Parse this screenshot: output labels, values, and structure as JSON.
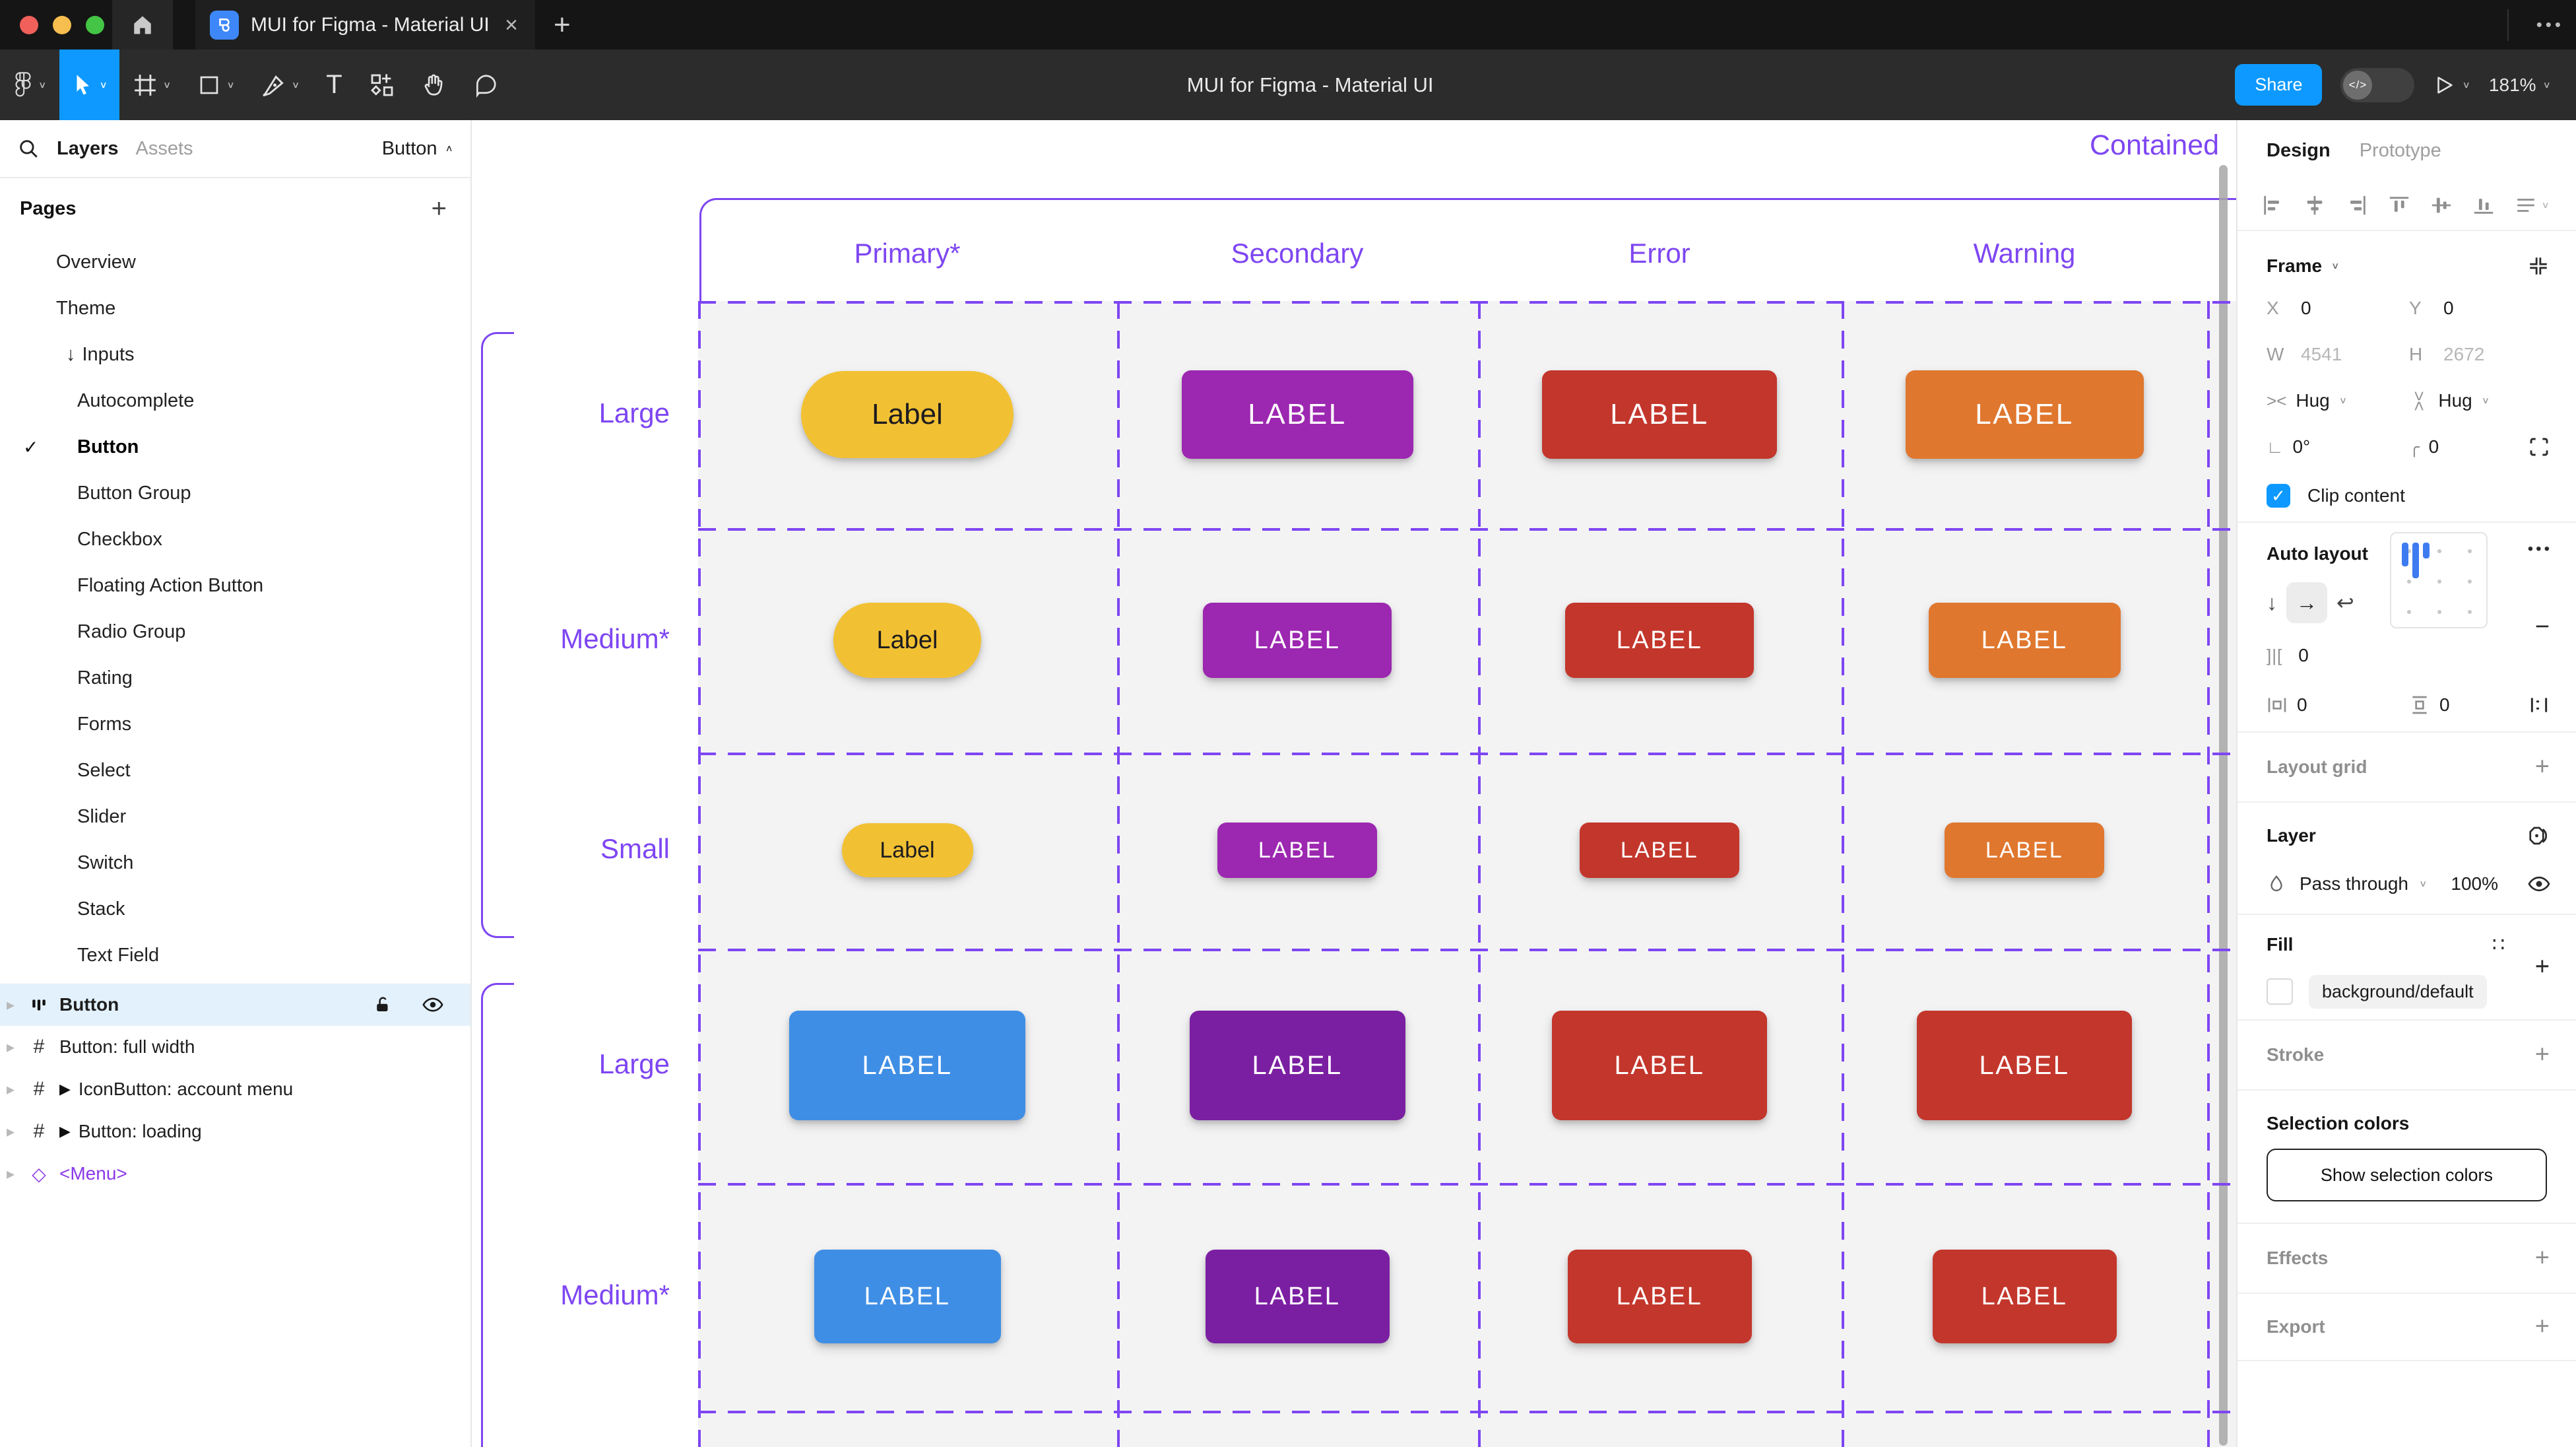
{
  "colors": {
    "accent_blue": "#0D99FF",
    "canvas_purple": "#7E46F2",
    "selected_row_bg": "#E3F1FC",
    "toolbar_bg": "#2C2C2C",
    "canvas_frame_fill": "#F3F3F4"
  },
  "icons": {
    "close": "×",
    "plus": "+",
    "minus": "−",
    "dots": "•••",
    "check": "✓",
    "chevron_down": "∨",
    "chevron_up": "∧",
    "arrow_down": "↓",
    "arrow_right": "→",
    "wrap": "↩",
    "gap": "]|[",
    "angle": "∟",
    "corner_radius": "╭",
    "proportion": "∷",
    "play_marker": "▶",
    "diamond": "◇",
    "expander": "▸",
    "hash": "#",
    "hug": "><",
    "dev_toggle": "</>"
  },
  "window": {
    "tab_title": "MUI for Figma - Material UI"
  },
  "toolbar": {
    "doc_title": "MUI for Figma - Material UI",
    "share_label": "Share",
    "zoom_level": "181%"
  },
  "sidebar": {
    "tabs": [
      {
        "label": "Layers",
        "active": true
      },
      {
        "label": "Assets",
        "active": false
      }
    ],
    "filter_label": "Button",
    "pages_title": "Pages",
    "pages": [
      {
        "label": "Overview",
        "indent": 0
      },
      {
        "label": "Theme",
        "indent": 0
      },
      {
        "label": "Inputs",
        "indent": 0,
        "icon": "arrow-down"
      },
      {
        "label": "Autocomplete",
        "indent": 1
      },
      {
        "label": "Button",
        "indent": 1,
        "checked": true,
        "active": true
      },
      {
        "label": "Button Group",
        "indent": 1
      },
      {
        "label": "Checkbox",
        "indent": 1
      },
      {
        "label": "Floating Action Button",
        "indent": 1
      },
      {
        "label": "Radio Group",
        "indent": 1
      },
      {
        "label": "Rating",
        "indent": 1
      },
      {
        "label": "Forms",
        "indent": 1
      },
      {
        "label": "Select",
        "indent": 1
      },
      {
        "label": "Slider",
        "indent": 1
      },
      {
        "label": "Switch",
        "indent": 1
      },
      {
        "label": "Stack",
        "indent": 1
      },
      {
        "label": "Text Field",
        "indent": 1
      }
    ],
    "layers": [
      {
        "label": "Button",
        "icon": "auto-layout",
        "selected": true
      },
      {
        "label": "Button: full width",
        "icon": "frame"
      },
      {
        "label": "IconButton: account menu",
        "icon": "frame",
        "expand_marker": true
      },
      {
        "label": "Button: loading",
        "icon": "frame",
        "expand_marker": true
      },
      {
        "label": "<Menu>",
        "icon": "instance",
        "purple": true
      }
    ]
  },
  "canvas": {
    "frame_title": "Contained",
    "columns": [
      "Primary*",
      "Secondary",
      "Error",
      "Warning"
    ],
    "rows": [
      {
        "size": "Large",
        "buttons": [
          {
            "label": "Label",
            "bg": "#F2C133",
            "fg": "#1C1B1F",
            "pill": true
          },
          {
            "label": "LABEL",
            "bg": "#9C27B0",
            "fg": "#FFFFFF"
          },
          {
            "label": "LABEL",
            "bg": "#C3362C",
            "fg": "#FFFFFF"
          },
          {
            "label": "LABEL",
            "bg": "#E0772E",
            "fg": "#FFFFFF"
          }
        ]
      },
      {
        "size": "Medium*",
        "buttons": [
          {
            "label": "Label",
            "bg": "#F2C133",
            "fg": "#1C1B1F",
            "pill": true
          },
          {
            "label": "LABEL",
            "bg": "#9C27B0",
            "fg": "#FFFFFF"
          },
          {
            "label": "LABEL",
            "bg": "#C3362C",
            "fg": "#FFFFFF"
          },
          {
            "label": "LABEL",
            "bg": "#E0772E",
            "fg": "#FFFFFF"
          }
        ]
      },
      {
        "size": "Small",
        "buttons": [
          {
            "label": "Label",
            "bg": "#F2C133",
            "fg": "#1C1B1F",
            "pill": true
          },
          {
            "label": "LABEL",
            "bg": "#9C27B0",
            "fg": "#FFFFFF"
          },
          {
            "label": "LABEL",
            "bg": "#C3362C",
            "fg": "#FFFFFF"
          },
          {
            "label": "LABEL",
            "bg": "#E0772E",
            "fg": "#FFFFFF"
          }
        ]
      },
      {
        "size": "Large",
        "buttons": [
          {
            "label": "LABEL",
            "bg": "#3F8EE5",
            "fg": "#FFFFFF"
          },
          {
            "label": "LABEL",
            "bg": "#7B1FA2",
            "fg": "#FFFFFF"
          },
          {
            "label": "LABEL",
            "bg": "#C3362C",
            "fg": "#FFFFFF"
          },
          {
            "label": "LABEL",
            "bg": "#C3362C",
            "fg": "#FFFFFF"
          }
        ]
      },
      {
        "size": "Medium*",
        "buttons": [
          {
            "label": "LABEL",
            "bg": "#3F8EE5",
            "fg": "#FFFFFF"
          },
          {
            "label": "LABEL",
            "bg": "#7B1FA2",
            "fg": "#FFFFFF"
          },
          {
            "label": "LABEL",
            "bg": "#C3362C",
            "fg": "#FFFFFF"
          },
          {
            "label": "LABEL",
            "bg": "#C3362C",
            "fg": "#FFFFFF"
          }
        ]
      }
    ]
  },
  "panel": {
    "tabs": [
      {
        "label": "Design",
        "active": true
      },
      {
        "label": "Prototype",
        "active": false
      }
    ],
    "frame": {
      "title": "Frame",
      "x_label": "X",
      "x": "0",
      "y_label": "Y",
      "y": "0",
      "w_label": "W",
      "w": "4541",
      "h_label": "H",
      "h": "2672",
      "hug_h": "Hug",
      "hug_v": "Hug",
      "rotation": "0°",
      "radius": "0",
      "clip_label": "Clip content"
    },
    "auto_layout": {
      "title": "Auto layout",
      "gap": "0",
      "pad_h": "0",
      "pad_v": "0"
    },
    "layout_grid_label": "Layout grid",
    "layer": {
      "title": "Layer",
      "blend_mode": "Pass through",
      "opacity": "100%"
    },
    "fill": {
      "title": "Fill",
      "token": "background/default"
    },
    "stroke_label": "Stroke",
    "selection": {
      "title": "Selection colors",
      "button_label": "Show selection colors"
    },
    "effects_label": "Effects",
    "export_label": "Export"
  }
}
